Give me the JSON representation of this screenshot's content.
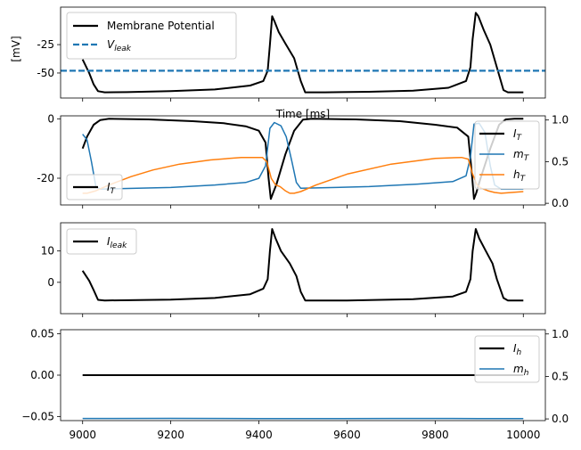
{
  "colors": {
    "black": "#000000",
    "blue": "#1f77b4",
    "orange": "#ff7f0e"
  },
  "chart_data": [
    {
      "type": "line",
      "ylabel": "[mV]",
      "xlabel": "Time [ms]",
      "xlim": [
        8950,
        10050
      ],
      "ylim": [
        -72,
        8
      ],
      "yticks": [
        -50,
        -25
      ],
      "legend_position": "upper-left",
      "series": [
        {
          "name": "Membrane Potential",
          "color": "#000000",
          "style": "solid",
          "legend_main": "Membrane Potential",
          "points": [
            [
              9000,
              -38
            ],
            [
              9015,
              -50
            ],
            [
              9025,
              -60
            ],
            [
              9035,
              -66
            ],
            [
              9050,
              -67
            ],
            [
              9100,
              -66.8
            ],
            [
              9200,
              -66
            ],
            [
              9300,
              -64.5
            ],
            [
              9380,
              -61
            ],
            [
              9410,
              -57
            ],
            [
              9420,
              -48
            ],
            [
              9425,
              -25
            ],
            [
              9430,
              0
            ],
            [
              9436,
              -5
            ],
            [
              9445,
              -14
            ],
            [
              9460,
              -24
            ],
            [
              9480,
              -37
            ],
            [
              9495,
              -57
            ],
            [
              9505,
              -67
            ],
            [
              9550,
              -67
            ],
            [
              9650,
              -66.5
            ],
            [
              9750,
              -65.5
            ],
            [
              9830,
              -63
            ],
            [
              9870,
              -57
            ],
            [
              9880,
              -45
            ],
            [
              9885,
              -20
            ],
            [
              9892,
              3
            ],
            [
              9898,
              0
            ],
            [
              9910,
              -12
            ],
            [
              9925,
              -25
            ],
            [
              9940,
              -45
            ],
            [
              9955,
              -65
            ],
            [
              9965,
              -67
            ],
            [
              10000,
              -67
            ]
          ]
        },
        {
          "name": "V_leak",
          "color": "#1f77b4",
          "style": "dashed",
          "legend_main": "V",
          "legend_sub": "leak",
          "points": [
            [
              8950,
              -48
            ],
            [
              10050,
              -48
            ]
          ]
        }
      ]
    },
    {
      "type": "line",
      "xlim": [
        8950,
        10050
      ],
      "ylim": [
        -29,
        1
      ],
      "yticks": [
        -20,
        0
      ],
      "ylim_right": [
        -0.02,
        1.05
      ],
      "yticks_right": [
        0.0,
        0.5,
        1.0
      ],
      "legend_left": {
        "position": "lower-left",
        "main": "I",
        "sub": "T"
      },
      "legend_right": {
        "position": "upper-right",
        "items": [
          {
            "main": "I",
            "sub": "T"
          },
          {
            "main": "m",
            "sub": "T"
          },
          {
            "main": "h",
            "sub": "T"
          }
        ]
      },
      "series": [
        {
          "name": "I_T",
          "axis": "left",
          "color": "#000000",
          "style": "solid",
          "points": [
            [
              9000,
              -10
            ],
            [
              9010,
              -6
            ],
            [
              9025,
              -2
            ],
            [
              9040,
              -0.4
            ],
            [
              9060,
              0
            ],
            [
              9150,
              -0.2
            ],
            [
              9250,
              -0.8
            ],
            [
              9320,
              -1.5
            ],
            [
              9370,
              -2.5
            ],
            [
              9400,
              -4
            ],
            [
              9415,
              -8
            ],
            [
              9422,
              -20
            ],
            [
              9427,
              -27
            ],
            [
              9432,
              -25
            ],
            [
              9440,
              -22
            ],
            [
              9460,
              -12
            ],
            [
              9480,
              -4
            ],
            [
              9500,
              -0.3
            ],
            [
              9520,
              0
            ],
            [
              9620,
              -0.2
            ],
            [
              9720,
              -0.8
            ],
            [
              9800,
              -2
            ],
            [
              9850,
              -3
            ],
            [
              9875,
              -6
            ],
            [
              9883,
              -18
            ],
            [
              9888,
              -27
            ],
            [
              9893,
              -25
            ],
            [
              9903,
              -20
            ],
            [
              9925,
              -10
            ],
            [
              9945,
              -2
            ],
            [
              9960,
              -0.2
            ],
            [
              9980,
              0
            ],
            [
              10000,
              0
            ]
          ]
        },
        {
          "name": "m_T",
          "axis": "right",
          "color": "#1f77b4",
          "style": "solid",
          "points": [
            [
              9000,
              0.83
            ],
            [
              9010,
              0.76
            ],
            [
              9020,
              0.5
            ],
            [
              9030,
              0.2
            ],
            [
              9040,
              0.17
            ],
            [
              9200,
              0.19
            ],
            [
              9300,
              0.22
            ],
            [
              9370,
              0.25
            ],
            [
              9400,
              0.3
            ],
            [
              9415,
              0.45
            ],
            [
              9425,
              0.9
            ],
            [
              9435,
              0.97
            ],
            [
              9450,
              0.93
            ],
            [
              9462,
              0.8
            ],
            [
              9475,
              0.5
            ],
            [
              9485,
              0.25
            ],
            [
              9495,
              0.18
            ],
            [
              9650,
              0.2
            ],
            [
              9760,
              0.23
            ],
            [
              9840,
              0.26
            ],
            [
              9870,
              0.33
            ],
            [
              9880,
              0.55
            ],
            [
              9888,
              0.95
            ],
            [
              9900,
              0.96
            ],
            [
              9913,
              0.85
            ],
            [
              9925,
              0.45
            ],
            [
              9935,
              0.22
            ],
            [
              9950,
              0.17
            ],
            [
              10000,
              0.17
            ]
          ]
        },
        {
          "name": "h_T",
          "axis": "right",
          "color": "#ff7f0e",
          "style": "solid",
          "points": [
            [
              9000,
              0.12
            ],
            [
              9010,
              0.12
            ],
            [
              9030,
              0.15
            ],
            [
              9060,
              0.22
            ],
            [
              9110,
              0.32
            ],
            [
              9160,
              0.4
            ],
            [
              9220,
              0.47
            ],
            [
              9290,
              0.52
            ],
            [
              9360,
              0.55
            ],
            [
              9408,
              0.55
            ],
            [
              9418,
              0.5
            ],
            [
              9428,
              0.3
            ],
            [
              9438,
              0.22
            ],
            [
              9448,
              0.2
            ],
            [
              9460,
              0.15
            ],
            [
              9470,
              0.12
            ],
            [
              9480,
              0.12
            ],
            [
              9495,
              0.14
            ],
            [
              9530,
              0.22
            ],
            [
              9600,
              0.35
            ],
            [
              9700,
              0.47
            ],
            [
              9800,
              0.54
            ],
            [
              9860,
              0.55
            ],
            [
              9875,
              0.53
            ],
            [
              9885,
              0.35
            ],
            [
              9895,
              0.22
            ],
            [
              9905,
              0.18
            ],
            [
              9920,
              0.15
            ],
            [
              9935,
              0.13
            ],
            [
              9950,
              0.12
            ],
            [
              10000,
              0.14
            ]
          ]
        }
      ]
    },
    {
      "type": "line",
      "xlim": [
        8950,
        10050
      ],
      "ylim": [
        -10,
        19
      ],
      "yticks": [
        0,
        10
      ],
      "legend": {
        "position": "upper-left",
        "main": "I",
        "sub": "leak"
      },
      "series": [
        {
          "name": "I_leak",
          "color": "#000000",
          "style": "solid",
          "points": [
            [
              9000,
              3.7
            ],
            [
              9015,
              0.5
            ],
            [
              9025,
              -2.5
            ],
            [
              9035,
              -5.6
            ],
            [
              9050,
              -5.8
            ],
            [
              9200,
              -5.5
            ],
            [
              9300,
              -5
            ],
            [
              9380,
              -3.8
            ],
            [
              9410,
              -2
            ],
            [
              9420,
              1
            ],
            [
              9425,
              10
            ],
            [
              9430,
              17
            ],
            [
              9438,
              14
            ],
            [
              9450,
              10
            ],
            [
              9470,
              6
            ],
            [
              9485,
              2
            ],
            [
              9495,
              -3
            ],
            [
              9505,
              -5.8
            ],
            [
              9600,
              -5.8
            ],
            [
              9750,
              -5.4
            ],
            [
              9840,
              -4.5
            ],
            [
              9870,
              -3
            ],
            [
              9880,
              1
            ],
            [
              9885,
              10
            ],
            [
              9892,
              17
            ],
            [
              9900,
              14
            ],
            [
              9915,
              10
            ],
            [
              9930,
              6
            ],
            [
              9940,
              1
            ],
            [
              9955,
              -5
            ],
            [
              9965,
              -5.8
            ],
            [
              10000,
              -5.8
            ]
          ]
        }
      ]
    },
    {
      "type": "line",
      "xlim": [
        8950,
        10050
      ],
      "ylim": [
        -0.055,
        0.055
      ],
      "yticks": [
        -0.05,
        0.0,
        0.05
      ],
      "ytick_labels": [
        "−0.05",
        "0.00",
        "0.05"
      ],
      "ylim_right": [
        -0.02,
        1.05
      ],
      "yticks_right": [
        0.0,
        0.5,
        1.0
      ],
      "xticks": [
        9000,
        9200,
        9400,
        9600,
        9800,
        10000
      ],
      "legend": {
        "position": "upper-right",
        "items": [
          {
            "main": "I",
            "sub": "h"
          },
          {
            "main": "m",
            "sub": "h"
          }
        ]
      },
      "series": [
        {
          "name": "I_h",
          "axis": "left",
          "color": "#000000",
          "style": "solid",
          "points": [
            [
              9000,
              0
            ],
            [
              10000,
              0
            ]
          ]
        },
        {
          "name": "m_h",
          "axis": "right",
          "color": "#1f77b4",
          "style": "solid",
          "points": [
            [
              9000,
              0.005
            ],
            [
              9200,
              0.006
            ],
            [
              9400,
              0.004
            ],
            [
              9500,
              0.003
            ],
            [
              9700,
              0.005
            ],
            [
              9900,
              0.004
            ],
            [
              10000,
              0.004
            ]
          ]
        }
      ]
    }
  ]
}
